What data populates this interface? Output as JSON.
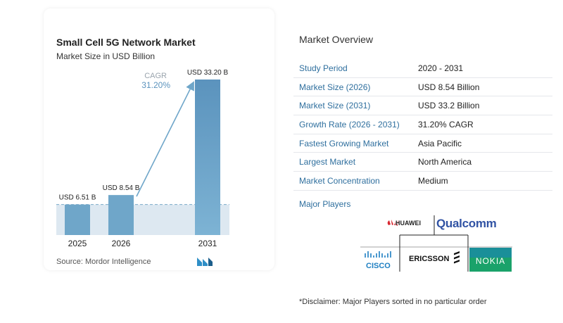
{
  "chart": {
    "title": "Small Cell 5G Network Market",
    "subtitle": "Market Size in USD Billion",
    "source": "Source:  Mordor Intelligence",
    "cagr_label": "CAGR",
    "cagr_value": "31.20%"
  },
  "chart_data": {
    "type": "bar",
    "categories": [
      "2025",
      "2026",
      "2031"
    ],
    "values": [
      6.51,
      8.54,
      33.2
    ],
    "data_labels": [
      "USD 6.51 B",
      "USD 8.54 B",
      "USD 33.20 B"
    ],
    "title": "Small Cell 5G Network Market",
    "subtitle": "Market Size in USD Billion",
    "xlabel": "",
    "ylabel": "",
    "ylim": [
      0,
      33.2
    ],
    "grid": false,
    "annotation": "CAGR 31.20%"
  },
  "overview": {
    "title": "Market Overview",
    "rows": [
      {
        "label": "Study Period",
        "value": "2020 - 2031"
      },
      {
        "label": "Market Size (2026)",
        "value": "USD 8.54 Billion"
      },
      {
        "label": "Market Size (2031)",
        "value": "USD 33.2 Billion"
      },
      {
        "label": "Growth Rate (2026 - 2031)",
        "value": "31.20% CAGR"
      },
      {
        "label": "Fastest Growing Market",
        "value": "Asia Pacific"
      },
      {
        "label": "Largest Market",
        "value": "North America"
      },
      {
        "label": "Market Concentration",
        "value": "Medium"
      }
    ]
  },
  "players": {
    "title": "Major Players",
    "names": [
      "HUAWEI",
      "Qualcomm",
      "CISCO",
      "ERICSSON",
      "NOKIA"
    ]
  },
  "disclaimer": "*Disclaimer: Major Players sorted in no particular order",
  "colors": {
    "bar_light": "#6fa6c9",
    "bar_dark": "#5b93bd",
    "band": "#dde8f1",
    "accent": "#2f6f9e",
    "nokia_bg": "#1aa26a",
    "qualcomm": "#3153a4",
    "huawei": "#d8262f"
  }
}
